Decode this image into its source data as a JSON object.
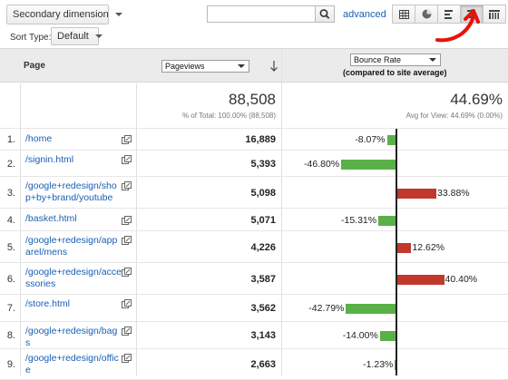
{
  "toolbar": {
    "secondary_dimension": "Secondary dimension",
    "search_value": "",
    "advanced_label": "advanced",
    "views": [
      "data-table-view",
      "percentage-pie-view",
      "performance-bar-view",
      "comparison-view",
      "pivot-view"
    ],
    "active_view": "comparison-view"
  },
  "sort": {
    "label": "Sort Type:",
    "value": "Default"
  },
  "columns": {
    "page": "Page",
    "primary_metric": "Pageviews",
    "comparison_metric": "Bounce Rate",
    "comparison_note": "(compared to site average)"
  },
  "totals": {
    "pageviews": "88,508",
    "pageviews_note": "% of Total: 100.00% (88,508)",
    "bounce_rate": "44.69%",
    "bounce_note": "Avg for View: 44.69% (0.00%)"
  },
  "rows": [
    {
      "n": "1.",
      "page": "/home",
      "pageviews": "16,889",
      "delta_label": "-8.07%",
      "delta": -8.07
    },
    {
      "n": "2.",
      "page": "/signin.html",
      "pageviews": "5,393",
      "delta_label": "-46.80%",
      "delta": -46.8
    },
    {
      "n": "3.",
      "page": "/google+redesign/shop+by+brand/youtube",
      "pageviews": "5,098",
      "delta_label": "33.88%",
      "delta": 33.88
    },
    {
      "n": "4.",
      "page": "/basket.html",
      "pageviews": "5,071",
      "delta_label": "-15.31%",
      "delta": -15.31
    },
    {
      "n": "5.",
      "page": "/google+redesign/apparel/mens",
      "pageviews": "4,226",
      "delta_label": "12.62%",
      "delta": 12.62
    },
    {
      "n": "6.",
      "page": "/google+redesign/accessories",
      "pageviews": "3,587",
      "delta_label": "40.40%",
      "delta": 40.4
    },
    {
      "n": "7.",
      "page": "/store.html",
      "pageviews": "3,562",
      "delta_label": "-42.79%",
      "delta": -42.79
    },
    {
      "n": "8.",
      "page": "/google+redesign/bags",
      "pageviews": "3,143",
      "delta_label": "-14.00%",
      "delta": -14.0
    },
    {
      "n": "9.",
      "page": "/google+redesign/office",
      "pageviews": "2,663",
      "delta_label": "-1.23%",
      "delta": -1.23
    }
  ],
  "colors": {
    "positive": "#c0392b",
    "negative": "#5ab048",
    "link": "#1a5fb4",
    "annotation": "#e8120c"
  }
}
